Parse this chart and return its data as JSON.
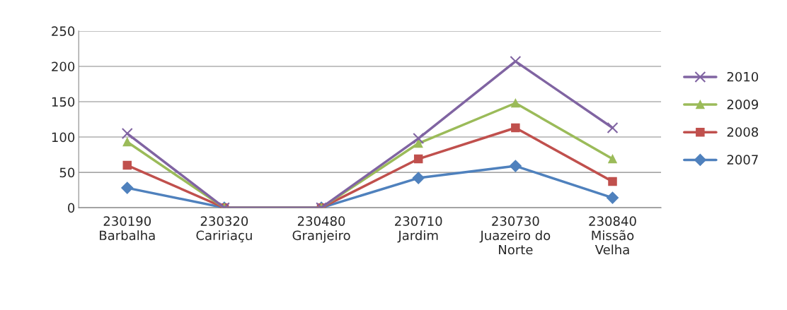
{
  "chart_data": {
    "type": "line",
    "categories": [
      "230190\nBarbalha",
      "230320\nCaririaçu",
      "230480\nGranjeiro",
      "230710\nJardim",
      "230730\nJuazeiro do\nNorte",
      "230840\nMissão\nVelha"
    ],
    "series": [
      {
        "name": "2010",
        "color": "#8064a2",
        "marker": "cross",
        "values": [
          105,
          0,
          0,
          98,
          207,
          113
        ]
      },
      {
        "name": "2009",
        "color": "#9bbb59",
        "marker": "triangle",
        "values": [
          93,
          0,
          0,
          91,
          148,
          69
        ]
      },
      {
        "name": "2008",
        "color": "#c0504d",
        "marker": "square",
        "values": [
          60,
          0,
          0,
          69,
          113,
          37
        ]
      },
      {
        "name": "2007",
        "color": "#4f81bd",
        "marker": "diamond",
        "values": [
          28,
          0,
          0,
          42,
          59,
          14
        ]
      }
    ],
    "ylim": [
      0,
      250
    ],
    "yticks": [
      0,
      50,
      100,
      150,
      200,
      250
    ],
    "grid": "y",
    "legend": "right",
    "line_style": "solid"
  }
}
